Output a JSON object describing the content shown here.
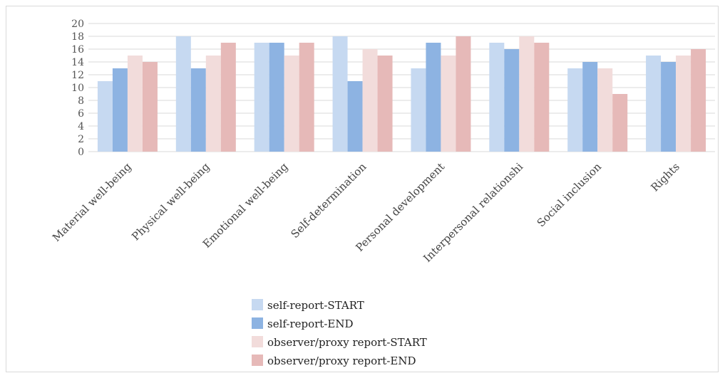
{
  "chart_data": {
    "type": "bar",
    "categories": [
      "Material well-being",
      "Physical well-being",
      "Emotional well-being",
      "Self-determination",
      "Personal development",
      "Interpersonal relationshi",
      "Social inclusion",
      "Rights"
    ],
    "series": [
      {
        "name": "self-report-START",
        "color": "#c6d9f1",
        "values": [
          11,
          18,
          17,
          18,
          13,
          17,
          13,
          15
        ]
      },
      {
        "name": "self-report-END",
        "color": "#8db3e2",
        "values": [
          13,
          13,
          17,
          11,
          17,
          16,
          14,
          14
        ]
      },
      {
        "name": "observer/proxy report-START",
        "color": "#f2dcdb",
        "values": [
          15,
          15,
          15,
          16,
          15,
          18,
          13,
          15
        ]
      },
      {
        "name": "observer/proxy report-END",
        "color": "#e6b9b8",
        "values": [
          14,
          17,
          17,
          15,
          18,
          17,
          9,
          16
        ]
      }
    ],
    "ylim": [
      0,
      20
    ],
    "yticks": [
      0,
      2,
      4,
      6,
      8,
      10,
      12,
      14,
      16,
      18,
      20
    ],
    "grid": true,
    "gridColor": "#d9d9d9",
    "legend_position": "bottom",
    "title": "",
    "xlabel": "",
    "ylabel": ""
  }
}
